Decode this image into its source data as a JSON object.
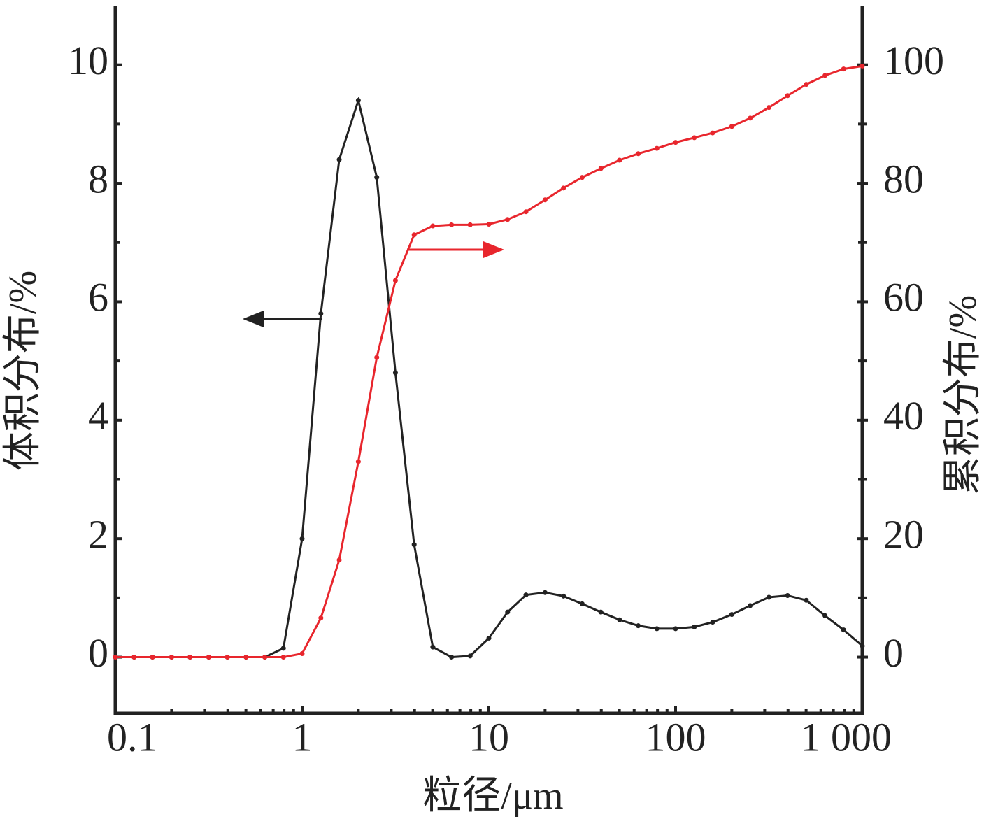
{
  "chart_data": {
    "type": "line",
    "x_label": "粒径/μm",
    "y_label": "体积分布/%",
    "y2_label": "累积分布/%",
    "x": [
      0.1,
      0.126,
      0.158,
      0.2,
      0.251,
      0.316,
      0.398,
      0.501,
      0.631,
      0.794,
      1,
      1.26,
      1.58,
      2,
      2.51,
      3.16,
      3.98,
      5.01,
      6.31,
      7.94,
      10,
      12.6,
      15.8,
      20,
      25.1,
      31.6,
      39.8,
      50.1,
      63.1,
      79.4,
      100,
      126,
      158,
      200,
      251,
      316,
      398,
      501,
      631,
      794,
      1000
    ],
    "series": [
      {
        "name": "体积分布",
        "color": "#222222",
        "axis": "y",
        "values": [
          0,
          0,
          0,
          0,
          0,
          0,
          0,
          0,
          0,
          0.15,
          2.0,
          5.8,
          8.4,
          9.4,
          8.1,
          4.8,
          1.9,
          0.17,
          0,
          0.02,
          0.32,
          0.76,
          1.05,
          1.09,
          1.03,
          0.9,
          0.76,
          0.63,
          0.53,
          0.48,
          0.48,
          0.51,
          0.59,
          0.72,
          0.87,
          1.01,
          1.04,
          0.96,
          0.7,
          0.46,
          0.19
        ]
      },
      {
        "name": "累积分布",
        "color": "#e8262d",
        "axis": "y2",
        "values": [
          0,
          0,
          0,
          0,
          0,
          0,
          0,
          0,
          0,
          0,
          0.6,
          6.6,
          16.4,
          33,
          50.6,
          63.6,
          71.3,
          72.8,
          73,
          73,
          73.1,
          73.9,
          75.2,
          77.2,
          79.2,
          81,
          82.5,
          83.9,
          85,
          85.9,
          86.9,
          87.7,
          88.5,
          89.6,
          91,
          92.8,
          94.8,
          96.7,
          98.2,
          99.3,
          99.8
        ]
      }
    ],
    "xscale": "log",
    "xlim": [
      0.1,
      1000
    ],
    "xticks": [
      0.1,
      1,
      10,
      100,
      {
        "value": 1000,
        "label": "1 000"
      }
    ],
    "xminorticks": [
      0.2,
      0.3,
      0.4,
      0.5,
      0.6,
      0.7,
      0.8,
      0.9,
      2,
      3,
      4,
      5,
      6,
      7,
      8,
      9,
      20,
      30,
      40,
      50,
      60,
      70,
      80,
      90,
      200,
      300,
      400,
      500,
      600,
      700,
      800,
      900
    ],
    "ylim": [
      -0.95,
      11
    ],
    "yticks": [
      0,
      2,
      4,
      6,
      8,
      10
    ],
    "yminorticks": [
      1,
      3,
      5,
      7,
      9
    ],
    "y2lim": [
      -9.5,
      110
    ],
    "y2ticks": [
      0,
      20,
      40,
      60,
      80,
      100
    ],
    "y2minorticks": [
      10,
      30,
      50,
      70,
      90
    ],
    "grid": false
  }
}
